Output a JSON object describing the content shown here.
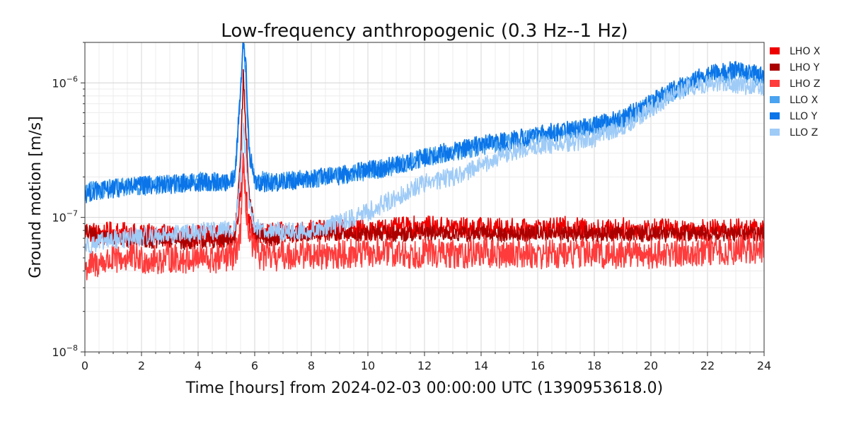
{
  "chart_data": {
    "type": "line",
    "title": "Low-frequency anthropogenic (0.3 Hz--1 Hz)",
    "xlabel": "Time [hours] from 2024-02-03 00:00:00 UTC (1390953618.0)",
    "ylabel": "Ground motion [m/s]",
    "xlim": [
      0,
      24
    ],
    "ylim": [
      1e-08,
      2e-06
    ],
    "yscale": "log",
    "x_ticks": [
      0,
      2,
      4,
      6,
      8,
      10,
      12,
      14,
      16,
      18,
      20,
      22,
      24
    ],
    "x_tick_labels": [
      "0",
      "2",
      "4",
      "6",
      "8",
      "10",
      "12",
      "14",
      "16",
      "18",
      "20",
      "22",
      "24"
    ],
    "y_ticks": [
      1e-08,
      1e-07,
      1e-06
    ],
    "y_tick_labels": [
      {
        "base": "10",
        "exp": "−8"
      },
      {
        "base": "10",
        "exp": "−7"
      },
      {
        "base": "10",
        "exp": "−6"
      }
    ],
    "grid": true,
    "legend_position": "outside-right",
    "x": [
      0,
      0.5,
      1,
      1.5,
      2,
      2.5,
      3,
      3.5,
      4,
      4.5,
      5,
      5.3,
      5.5,
      5.6,
      5.7,
      5.8,
      6,
      6.5,
      7,
      7.5,
      8,
      8.5,
      9,
      9.5,
      10,
      10.5,
      11,
      11.5,
      12,
      12.5,
      13,
      13.5,
      14,
      14.5,
      15,
      15.5,
      16,
      16.5,
      17,
      17.5,
      18,
      18.5,
      19,
      19.5,
      20,
      20.5,
      21,
      21.5,
      22,
      22.5,
      23,
      23.5,
      24
    ],
    "series": [
      {
        "name": "LHO X",
        "color": "#ee0000",
        "values": [
          8e-08,
          7.5e-08,
          7.8e-08,
          7.6e-08,
          7.4e-08,
          7.5e-08,
          7.3e-08,
          7.2e-08,
          7.4e-08,
          7.3e-08,
          7.2e-08,
          7.4e-08,
          1.5e-07,
          2.5e-07,
          1.5e-07,
          9e-08,
          7.5e-08,
          7.6e-08,
          7.7e-08,
          7.8e-08,
          8e-08,
          7.9e-08,
          8e-08,
          8.1e-08,
          8e-08,
          8.2e-08,
          8.3e-08,
          8.5e-08,
          8.6e-08,
          8.4e-08,
          8.5e-08,
          8.3e-08,
          8.4e-08,
          8.2e-08,
          8.3e-08,
          8.1e-08,
          8.3e-08,
          8.2e-08,
          8.5e-08,
          8.3e-08,
          8.2e-08,
          8.1e-08,
          8.3e-08,
          8.2e-08,
          8.1e-08,
          8.3e-08,
          8e-08,
          8.2e-08,
          8.1e-08,
          8e-08,
          8.2e-08,
          8.1e-08,
          8e-08
        ]
      },
      {
        "name": "LHO Y",
        "color": "#aa0000",
        "values": [
          7.8e-08,
          7.2e-08,
          7e-08,
          6.8e-08,
          6.9e-08,
          6.7e-08,
          6.8e-08,
          6.6e-08,
          6.7e-08,
          6.8e-08,
          6.6e-08,
          7e-08,
          3e-07,
          1.1e-06,
          4e-07,
          1.5e-07,
          7.5e-08,
          7e-08,
          7.3e-08,
          7.5e-08,
          7.6e-08,
          7.5e-08,
          7.6e-08,
          7.5e-08,
          7.6e-08,
          7.7e-08,
          7.5e-08,
          7.6e-08,
          7.7e-08,
          7.5e-08,
          7.6e-08,
          7.5e-08,
          7.6e-08,
          7.5e-08,
          7.6e-08,
          7.5e-08,
          7.7e-08,
          7.6e-08,
          7.5e-08,
          7.6e-08,
          7.5e-08,
          7.6e-08,
          7.7e-08,
          7.5e-08,
          7.6e-08,
          7.5e-08,
          7.6e-08,
          7.7e-08,
          7.5e-08,
          7.6e-08,
          7.5e-08,
          7.6e-08,
          7.5e-08
        ]
      },
      {
        "name": "LHO Z",
        "color": "#ff3b3b",
        "values": [
          4.2e-08,
          4.6e-08,
          4.8e-08,
          5e-08,
          4.9e-08,
          4.8e-08,
          5e-08,
          4.9e-08,
          5e-08,
          4.8e-08,
          5e-08,
          5.2e-08,
          8e-08,
          2.5e-07,
          1.2e-07,
          7e-08,
          5.5e-08,
          5e-08,
          5.2e-08,
          5.3e-08,
          5.4e-08,
          5.2e-08,
          5.3e-08,
          5.4e-08,
          5.3e-08,
          5.5e-08,
          5.4e-08,
          5.3e-08,
          5.5e-08,
          5.4e-08,
          5.3e-08,
          5.4e-08,
          5.5e-08,
          5.3e-08,
          5.4e-08,
          5.5e-08,
          5.3e-08,
          5.4e-08,
          5.3e-08,
          5.5e-08,
          5.4e-08,
          5.3e-08,
          5.4e-08,
          5.5e-08,
          5.3e-08,
          5.4e-08,
          5.5e-08,
          5.6e-08,
          5.5e-08,
          5.6e-08,
          5.7e-08,
          5.8e-08,
          5.9e-08
        ]
      },
      {
        "name": "LLO X",
        "color": "#4aa3f0",
        "values": [
          1.55e-07,
          1.6e-07,
          1.65e-07,
          1.7e-07,
          1.7e-07,
          1.75e-07,
          1.75e-07,
          1.8e-07,
          1.85e-07,
          1.85e-07,
          1.8e-07,
          2e-07,
          8e-07,
          2.2e-06,
          1e-06,
          3e-07,
          1.9e-07,
          1.85e-07,
          1.85e-07,
          1.9e-07,
          1.95e-07,
          2e-07,
          2.05e-07,
          2.1e-07,
          2.2e-07,
          2.3e-07,
          2.4e-07,
          2.6e-07,
          2.8e-07,
          2.9e-07,
          3e-07,
          3.2e-07,
          3.4e-07,
          3.5e-07,
          3.6e-07,
          3.8e-07,
          4e-07,
          4.2e-07,
          4.3e-07,
          4.5e-07,
          4.7e-07,
          5e-07,
          5.4e-07,
          6e-07,
          7e-07,
          8e-07,
          9e-07,
          1e-06,
          1.1e-06,
          1.15e-06,
          1.2e-06,
          1.15e-06,
          1.1e-06
        ]
      },
      {
        "name": "LLO Y",
        "color": "#0a74e8",
        "values": [
          1.5e-07,
          1.58e-07,
          1.62e-07,
          1.7e-07,
          1.72e-07,
          1.74e-07,
          1.76e-07,
          1.8e-07,
          1.82e-07,
          1.84e-07,
          1.82e-07,
          2e-07,
          9e-07,
          2.3e-06,
          1.2e-06,
          3.2e-07,
          1.85e-07,
          1.8e-07,
          1.85e-07,
          1.9e-07,
          1.95e-07,
          2e-07,
          2.05e-07,
          2.15e-07,
          2.25e-07,
          2.35e-07,
          2.45e-07,
          2.6e-07,
          2.8e-07,
          3e-07,
          3.1e-07,
          3.3e-07,
          3.5e-07,
          3.6e-07,
          3.7e-07,
          3.9e-07,
          4.1e-07,
          4.3e-07,
          4.4e-07,
          4.6e-07,
          4.8e-07,
          5.1e-07,
          5.5e-07,
          6.2e-07,
          7.2e-07,
          8.3e-07,
          9.3e-07,
          1.05e-06,
          1.15e-06,
          1.2e-06,
          1.25e-06,
          1.2e-06,
          1.15e-06
        ]
      },
      {
        "name": "LLO Z",
        "color": "#9fcbf7",
        "values": [
          6.2e-08,
          6.5e-08,
          6.8e-08,
          7e-08,
          7.2e-08,
          7.3e-08,
          7.5e-08,
          7.6e-08,
          7.8e-08,
          7.9e-08,
          8e-08,
          8.2e-08,
          2e-07,
          5e-07,
          2.5e-07,
          1.2e-07,
          8.5e-08,
          8e-08,
          7.8e-08,
          7.8e-08,
          8e-08,
          8.5e-08,
          9e-08,
          1e-07,
          1.1e-07,
          1.25e-07,
          1.4e-07,
          1.6e-07,
          1.8e-07,
          1.9e-07,
          2e-07,
          2.2e-07,
          2.4e-07,
          2.7e-07,
          3e-07,
          3.2e-07,
          3.4e-07,
          3.5e-07,
          3.6e-07,
          3.7e-07,
          3.9e-07,
          4.3e-07,
          4.8e-07,
          5.5e-07,
          6.5e-07,
          7.5e-07,
          8.5e-07,
          9.3e-07,
          9.8e-07,
          1e-06,
          9.8e-07,
          9.5e-07,
          9.3e-07
        ]
      }
    ]
  }
}
